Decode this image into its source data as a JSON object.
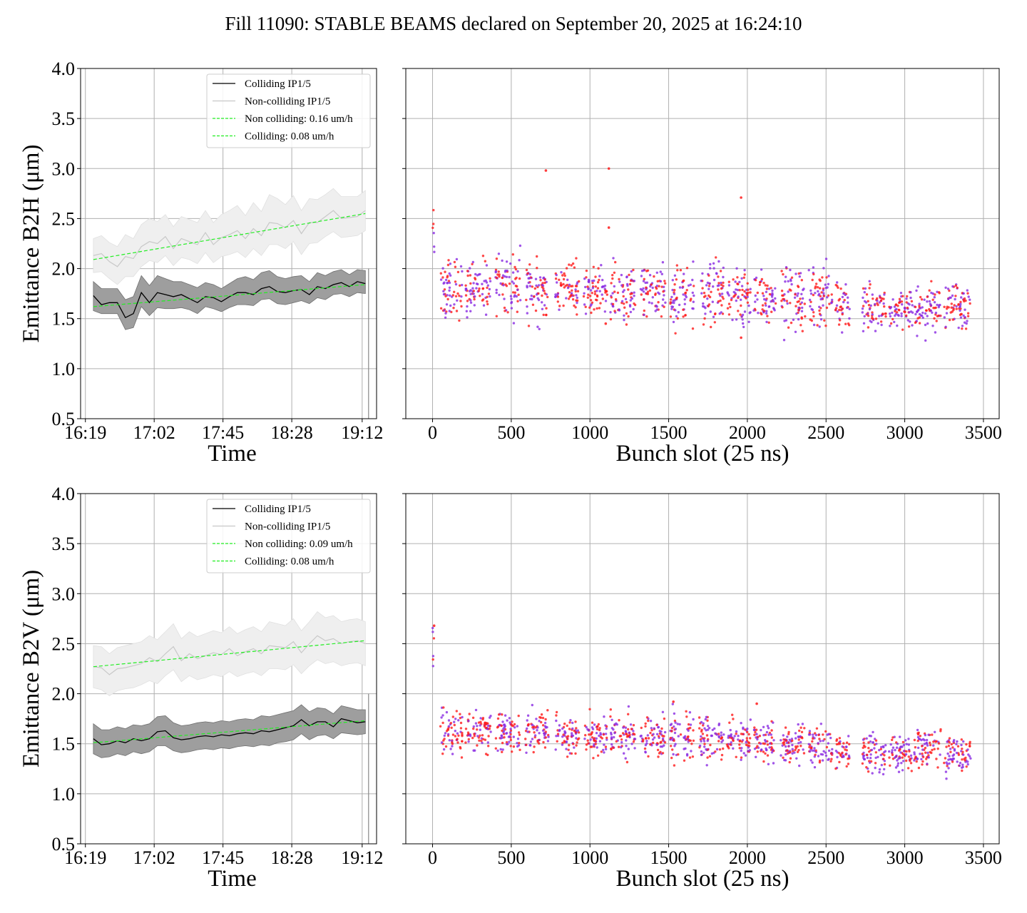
{
  "title": "Fill 11090: STABLE BEAMS declared on September 20, 2025 at 16:24:10",
  "colors": {
    "colliding": "#000000",
    "non_colliding": "#c8c8c8",
    "fit": "#22ee22",
    "colliding_band": "#9e9e9e",
    "non_colliding_band": "#efefef",
    "scatter_purple": "#8a2be2",
    "scatter_red": "#ff1a1a",
    "grid": "#b0b0b0"
  },
  "chart_data": [
    {
      "type": "line",
      "panel": "B2H-time",
      "xlabel": "Time",
      "ylabel": "Emittance B2H (μm)",
      "x_tick_labels": [
        "16:19",
        "17:02",
        "17:45",
        "18:28",
        "19:12"
      ],
      "x_ticks_min": [
        0,
        43,
        86,
        129,
        173
      ],
      "xlim_min": [
        -3,
        182
      ],
      "ylim": [
        0.5,
        4.0
      ],
      "y_tick_labels": [
        "0.5",
        "1.0",
        "1.5",
        "2.0",
        "2.5",
        "3.0",
        "3.5",
        "4.0"
      ],
      "grid": true,
      "legend_position": "upper right",
      "legend": [
        "Colliding IP1/5",
        "Non-colliding IP1/5",
        "Non colliding: 0.16 um/h",
        "Colliding: 0.08 um/h"
      ],
      "series": [
        {
          "name": "Colliding IP1/5",
          "x_min": [
            5,
            10,
            15,
            20,
            25,
            30,
            35,
            40,
            45,
            50,
            55,
            60,
            65,
            70,
            75,
            80,
            85,
            90,
            95,
            100,
            105,
            110,
            115,
            120,
            125,
            130,
            135,
            140,
            145,
            150,
            155,
            160,
            165,
            170,
            175
          ],
          "values": [
            1.73,
            1.64,
            1.66,
            1.66,
            1.51,
            1.55,
            1.76,
            1.66,
            1.76,
            1.74,
            1.72,
            1.74,
            1.7,
            1.66,
            1.72,
            1.71,
            1.67,
            1.72,
            1.76,
            1.76,
            1.74,
            1.8,
            1.82,
            1.77,
            1.76,
            1.78,
            1.79,
            1.74,
            1.82,
            1.8,
            1.84,
            1.86,
            1.82,
            1.87,
            1.85
          ],
          "band_low": [
            1.58,
            1.55,
            1.55,
            1.55,
            1.39,
            1.41,
            1.62,
            1.53,
            1.61,
            1.6,
            1.6,
            1.61,
            1.59,
            1.55,
            1.62,
            1.6,
            1.57,
            1.61,
            1.64,
            1.64,
            1.63,
            1.69,
            1.7,
            1.65,
            1.64,
            1.66,
            1.68,
            1.65,
            1.71,
            1.69,
            1.74,
            1.75,
            1.72,
            1.76,
            1.75
          ],
          "band_high": [
            1.87,
            1.8,
            1.8,
            1.8,
            1.69,
            1.72,
            1.93,
            1.83,
            1.93,
            1.9,
            1.87,
            1.87,
            1.84,
            1.81,
            1.86,
            1.84,
            1.8,
            1.85,
            1.9,
            1.92,
            1.89,
            1.96,
            1.98,
            1.92,
            1.9,
            1.92,
            1.93,
            1.87,
            1.96,
            1.93,
            1.97,
            1.99,
            1.94,
            1.99,
            1.98
          ]
        },
        {
          "name": "Non-colliding IP1/5",
          "x_min": [
            5,
            10,
            15,
            20,
            25,
            30,
            35,
            40,
            45,
            50,
            55,
            60,
            65,
            70,
            75,
            80,
            85,
            90,
            95,
            100,
            105,
            110,
            115,
            120,
            125,
            130,
            135,
            140,
            145,
            150,
            155,
            160,
            165,
            170,
            175
          ],
          "values": [
            2.13,
            2.15,
            2.07,
            2.02,
            2.12,
            2.1,
            2.22,
            2.27,
            2.25,
            2.32,
            2.2,
            2.3,
            2.27,
            2.24,
            2.36,
            2.24,
            2.31,
            2.34,
            2.38,
            2.3,
            2.4,
            2.33,
            2.46,
            2.45,
            2.41,
            2.48,
            2.35,
            2.46,
            2.46,
            2.52,
            2.58,
            2.5,
            2.51,
            2.52,
            2.58
          ],
          "band_low": [
            1.96,
            1.97,
            1.9,
            1.84,
            1.92,
            1.92,
            2.02,
            2.08,
            2.06,
            2.13,
            2.03,
            2.11,
            2.09,
            2.05,
            2.16,
            2.06,
            2.12,
            2.14,
            2.17,
            2.11,
            2.2,
            2.13,
            2.24,
            2.24,
            2.2,
            2.27,
            2.14,
            2.25,
            2.26,
            2.32,
            2.37,
            2.31,
            2.32,
            2.33,
            2.38
          ],
          "band_high": [
            2.3,
            2.33,
            2.26,
            2.22,
            2.34,
            2.3,
            2.44,
            2.5,
            2.47,
            2.54,
            2.42,
            2.52,
            2.49,
            2.46,
            2.58,
            2.46,
            2.54,
            2.58,
            2.63,
            2.53,
            2.66,
            2.57,
            2.74,
            2.7,
            2.64,
            2.73,
            2.58,
            2.7,
            2.69,
            2.74,
            2.8,
            2.72,
            2.72,
            2.72,
            2.78
          ]
        },
        {
          "name": "Non colliding: 0.16 um/h",
          "style": "dashed",
          "x_min": [
            5,
            175
          ],
          "values": [
            2.09,
            2.55
          ]
        },
        {
          "name": "Colliding: 0.08 um/h",
          "style": "dashed",
          "x_min": [
            5,
            175
          ],
          "values": [
            1.62,
            1.84
          ]
        }
      ]
    },
    {
      "type": "scatter",
      "panel": "B2H-bunch",
      "xlabel": "Bunch slot (25 ns)",
      "xlim": [
        -170,
        3600
      ],
      "x_ticks": [
        0,
        500,
        1000,
        1500,
        2000,
        2500,
        3000,
        3500
      ],
      "ylim": [
        0.5,
        4.0
      ],
      "grid": true,
      "train_groups": [
        {
          "start": 0,
          "end": 12,
          "center": 2.25,
          "spread": 0.3
        },
        {
          "start": 50,
          "end": 190,
          "center": 1.82,
          "spread": 0.22
        },
        {
          "start": 210,
          "end": 370,
          "center": 1.8,
          "spread": 0.2
        },
        {
          "start": 400,
          "end": 560,
          "center": 1.84,
          "spread": 0.22
        },
        {
          "start": 590,
          "end": 740,
          "center": 1.78,
          "spread": 0.22
        },
        {
          "start": 780,
          "end": 930,
          "center": 1.8,
          "spread": 0.18
        },
        {
          "start": 960,
          "end": 1110,
          "center": 1.79,
          "spread": 0.16
        },
        {
          "start": 1130,
          "end": 1290,
          "center": 1.76,
          "spread": 0.2
        },
        {
          "start": 1320,
          "end": 1480,
          "center": 1.8,
          "spread": 0.18
        },
        {
          "start": 1510,
          "end": 1660,
          "center": 1.73,
          "spread": 0.2
        },
        {
          "start": 1690,
          "end": 1850,
          "center": 1.76,
          "spread": 0.22
        },
        {
          "start": 1870,
          "end": 2020,
          "center": 1.73,
          "spread": 0.2
        },
        {
          "start": 2040,
          "end": 2180,
          "center": 1.68,
          "spread": 0.18
        },
        {
          "start": 2210,
          "end": 2370,
          "center": 1.7,
          "spread": 0.22
        },
        {
          "start": 2390,
          "end": 2540,
          "center": 1.71,
          "spread": 0.2
        },
        {
          "start": 2560,
          "end": 2650,
          "center": 1.62,
          "spread": 0.16
        },
        {
          "start": 2730,
          "end": 2880,
          "center": 1.61,
          "spread": 0.16
        },
        {
          "start": 2900,
          "end": 3050,
          "center": 1.58,
          "spread": 0.14
        },
        {
          "start": 3060,
          "end": 3230,
          "center": 1.6,
          "spread": 0.16
        },
        {
          "start": 3250,
          "end": 3420,
          "center": 1.6,
          "spread": 0.18
        }
      ],
      "outliers": [
        [
          720,
          2.98
        ],
        [
          1120,
          3.0
        ],
        [
          1960,
          2.71
        ],
        [
          1120,
          2.41
        ],
        [
          1100,
          1.45
        ],
        [
          1960,
          1.31
        ]
      ]
    },
    {
      "type": "line",
      "panel": "B2V-time",
      "xlabel": "Time",
      "ylabel": "Emittance B2V (μm)",
      "x_tick_labels": [
        "16:19",
        "17:02",
        "17:45",
        "18:28",
        "19:12"
      ],
      "x_ticks_min": [
        0,
        43,
        86,
        129,
        173
      ],
      "xlim_min": [
        -3,
        182
      ],
      "ylim": [
        0.5,
        4.0
      ],
      "y_tick_labels": [
        "0.5",
        "1.0",
        "1.5",
        "2.0",
        "2.5",
        "3.0",
        "3.5",
        "4.0"
      ],
      "grid": true,
      "legend_position": "upper right",
      "legend": [
        "Colliding IP1/5",
        "Non-colliding IP1/5",
        "Non colliding: 0.09 um/h",
        "Colliding: 0.08 um/h"
      ],
      "series": [
        {
          "name": "Colliding IP1/5",
          "x_min": [
            5,
            10,
            15,
            20,
            25,
            30,
            35,
            40,
            45,
            50,
            55,
            60,
            65,
            70,
            75,
            80,
            85,
            90,
            95,
            100,
            105,
            110,
            115,
            120,
            125,
            130,
            135,
            140,
            145,
            150,
            155,
            160,
            165,
            170,
            175
          ],
          "values": [
            1.55,
            1.49,
            1.5,
            1.53,
            1.51,
            1.55,
            1.53,
            1.55,
            1.62,
            1.63,
            1.56,
            1.54,
            1.55,
            1.57,
            1.58,
            1.57,
            1.59,
            1.58,
            1.6,
            1.61,
            1.6,
            1.63,
            1.62,
            1.64,
            1.66,
            1.68,
            1.74,
            1.68,
            1.72,
            1.72,
            1.67,
            1.75,
            1.73,
            1.71,
            1.72
          ],
          "band_low": [
            1.4,
            1.36,
            1.37,
            1.4,
            1.38,
            1.42,
            1.4,
            1.42,
            1.48,
            1.48,
            1.43,
            1.41,
            1.42,
            1.44,
            1.45,
            1.44,
            1.46,
            1.45,
            1.47,
            1.48,
            1.47,
            1.49,
            1.48,
            1.51,
            1.52,
            1.54,
            1.6,
            1.54,
            1.58,
            1.59,
            1.55,
            1.61,
            1.6,
            1.59,
            1.6
          ],
          "band_high": [
            1.7,
            1.64,
            1.64,
            1.67,
            1.65,
            1.69,
            1.68,
            1.7,
            1.77,
            1.78,
            1.71,
            1.68,
            1.69,
            1.71,
            1.72,
            1.71,
            1.73,
            1.72,
            1.74,
            1.75,
            1.74,
            1.78,
            1.77,
            1.79,
            1.81,
            1.83,
            1.89,
            1.82,
            1.86,
            1.85,
            1.8,
            1.88,
            1.86,
            1.84,
            1.84
          ]
        },
        {
          "name": "Non-colliding IP1/5",
          "x_min": [
            5,
            10,
            15,
            20,
            25,
            30,
            35,
            40,
            45,
            50,
            55,
            60,
            65,
            70,
            75,
            80,
            85,
            90,
            95,
            100,
            105,
            110,
            115,
            120,
            125,
            130,
            135,
            140,
            145,
            150,
            155,
            160,
            165,
            170,
            175
          ],
          "values": [
            2.27,
            2.26,
            2.19,
            2.25,
            2.26,
            2.28,
            2.3,
            2.36,
            2.32,
            2.4,
            2.47,
            2.33,
            2.4,
            2.35,
            2.38,
            2.41,
            2.39,
            2.45,
            2.38,
            2.42,
            2.45,
            2.4,
            2.48,
            2.47,
            2.46,
            2.52,
            2.41,
            2.5,
            2.58,
            2.53,
            2.55,
            2.5,
            2.52,
            2.53,
            2.5
          ],
          "band_low": [
            2.06,
            2.04,
            1.98,
            2.03,
            2.05,
            2.06,
            2.09,
            2.13,
            2.1,
            2.18,
            2.24,
            2.12,
            2.18,
            2.14,
            2.16,
            2.19,
            2.17,
            2.22,
            2.17,
            2.2,
            2.22,
            2.18,
            2.25,
            2.25,
            2.24,
            2.29,
            2.2,
            2.28,
            2.34,
            2.3,
            2.32,
            2.28,
            2.3,
            2.31,
            2.28
          ],
          "band_high": [
            2.48,
            2.47,
            2.4,
            2.46,
            2.48,
            2.5,
            2.52,
            2.58,
            2.54,
            2.62,
            2.7,
            2.55,
            2.62,
            2.57,
            2.6,
            2.63,
            2.61,
            2.67,
            2.6,
            2.64,
            2.67,
            2.62,
            2.72,
            2.7,
            2.68,
            2.75,
            2.63,
            2.72,
            2.82,
            2.76,
            2.78,
            2.72,
            2.74,
            2.75,
            2.72
          ]
        },
        {
          "name": "Non colliding: 0.09 um/h",
          "style": "dashed",
          "x_min": [
            5,
            175
          ],
          "values": [
            2.27,
            2.53
          ]
        },
        {
          "name": "Colliding: 0.08 um/h",
          "style": "dashed",
          "x_min": [
            5,
            175
          ],
          "values": [
            1.51,
            1.73
          ]
        }
      ]
    },
    {
      "type": "scatter",
      "panel": "B2V-bunch",
      "xlabel": "Bunch slot (25 ns)",
      "xlim": [
        -170,
        3600
      ],
      "x_ticks": [
        0,
        500,
        1000,
        1500,
        2000,
        2500,
        3000,
        3500
      ],
      "ylim": [
        0.5,
        4.0
      ],
      "grid": true,
      "train_groups": [
        {
          "start": 0,
          "end": 12,
          "center": 2.4,
          "spread": 0.3
        },
        {
          "start": 50,
          "end": 190,
          "center": 1.63,
          "spread": 0.16
        },
        {
          "start": 210,
          "end": 370,
          "center": 1.64,
          "spread": 0.16
        },
        {
          "start": 400,
          "end": 560,
          "center": 1.63,
          "spread": 0.16
        },
        {
          "start": 590,
          "end": 740,
          "center": 1.62,
          "spread": 0.16
        },
        {
          "start": 780,
          "end": 930,
          "center": 1.6,
          "spread": 0.14
        },
        {
          "start": 960,
          "end": 1110,
          "center": 1.58,
          "spread": 0.14
        },
        {
          "start": 1130,
          "end": 1290,
          "center": 1.59,
          "spread": 0.16
        },
        {
          "start": 1320,
          "end": 1480,
          "center": 1.57,
          "spread": 0.14
        },
        {
          "start": 1510,
          "end": 1660,
          "center": 1.56,
          "spread": 0.18
        },
        {
          "start": 1690,
          "end": 1850,
          "center": 1.58,
          "spread": 0.16
        },
        {
          "start": 1870,
          "end": 2020,
          "center": 1.54,
          "spread": 0.14
        },
        {
          "start": 2040,
          "end": 2180,
          "center": 1.51,
          "spread": 0.14
        },
        {
          "start": 2210,
          "end": 2370,
          "center": 1.48,
          "spread": 0.14
        },
        {
          "start": 2390,
          "end": 2540,
          "center": 1.49,
          "spread": 0.14
        },
        {
          "start": 2560,
          "end": 2650,
          "center": 1.42,
          "spread": 0.12
        },
        {
          "start": 2730,
          "end": 2880,
          "center": 1.41,
          "spread": 0.14
        },
        {
          "start": 2900,
          "end": 3050,
          "center": 1.41,
          "spread": 0.14
        },
        {
          "start": 3060,
          "end": 3230,
          "center": 1.45,
          "spread": 0.14
        },
        {
          "start": 3250,
          "end": 3420,
          "center": 1.41,
          "spread": 0.14
        }
      ],
      "outliers": [
        [
          10,
          2.68
        ],
        [
          1530,
          1.92
        ],
        [
          2060,
          1.9
        ]
      ]
    }
  ]
}
